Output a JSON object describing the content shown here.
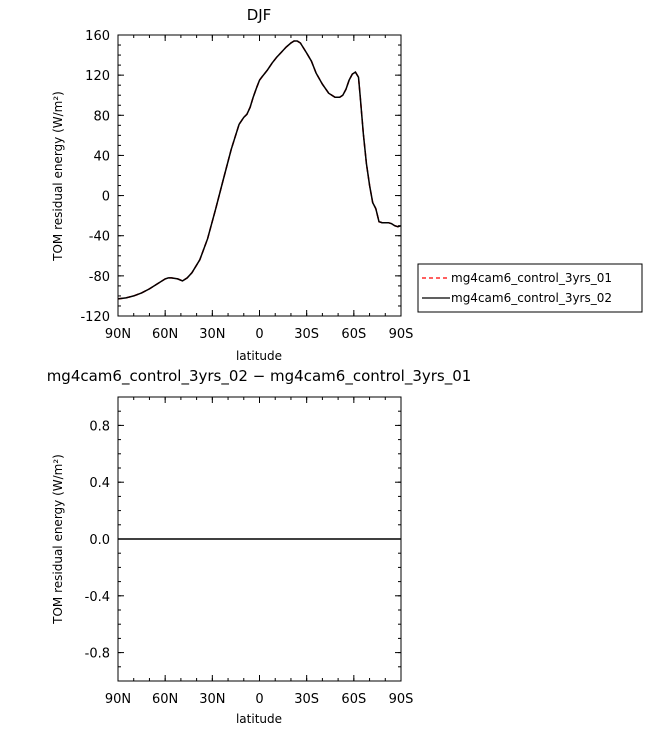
{
  "chart_data": [
    {
      "type": "line",
      "title": "DJF",
      "xlabel": "latitude",
      "ylabel": "TOM residual energy (W/m²)",
      "xlim": [
        90,
        -90
      ],
      "ylim": [
        -120,
        160
      ],
      "xticks": [
        {
          "value": 90,
          "label": "90N"
        },
        {
          "value": 60,
          "label": "60N"
        },
        {
          "value": 30,
          "label": "30N"
        },
        {
          "value": 0,
          "label": "0"
        },
        {
          "value": -30,
          "label": "30S"
        },
        {
          "value": -60,
          "label": "60S"
        },
        {
          "value": -90,
          "label": "90S"
        }
      ],
      "yticks": [
        {
          "value": 160,
          "label": "160"
        },
        {
          "value": 120,
          "label": "120"
        },
        {
          "value": 80,
          "label": "80"
        },
        {
          "value": 40,
          "label": "40"
        },
        {
          "value": 0,
          "label": "0"
        },
        {
          "value": -40,
          "label": "-40"
        },
        {
          "value": -80,
          "label": "-80"
        },
        {
          "value": -120,
          "label": "-120"
        }
      ],
      "legend_position": "right",
      "series": [
        {
          "name": "mg4cam6_control_3yrs_01",
          "color": "#ff0000",
          "style": "dashed",
          "x": [
            90,
            85,
            80,
            75,
            70,
            65,
            60,
            58,
            56,
            52,
            49,
            46,
            43,
            38,
            33,
            28,
            23,
            18,
            13,
            10,
            8,
            6,
            4,
            2,
            0,
            -2,
            -5,
            -8,
            -11,
            -14,
            -17,
            -20,
            -22,
            -24,
            -26,
            -28,
            -30,
            -33,
            -36,
            -40,
            -44,
            -48,
            -51,
            -53,
            -55,
            -57,
            -59,
            -61,
            -63,
            -64,
            -66,
            -68,
            -70,
            -72,
            -74,
            -76,
            -78,
            -80,
            -82,
            -84,
            -86,
            -88,
            -90
          ],
          "y": [
            -103,
            -102,
            -100,
            -97,
            -93,
            -88,
            -83,
            -82,
            -82,
            -83,
            -85,
            -82,
            -77,
            -64,
            -43,
            -14,
            16,
            46,
            71,
            78,
            81,
            88,
            98,
            107,
            115,
            119,
            125,
            132,
            138,
            143,
            148,
            152,
            154,
            154,
            152,
            147,
            142,
            134,
            122,
            111,
            102,
            98,
            98,
            100,
            106,
            115,
            121,
            123,
            118,
            100,
            62,
            32,
            10,
            -7,
            -13,
            -26,
            -27,
            -27,
            -27,
            -28,
            -30,
            -31,
            -30
          ]
        },
        {
          "name": "mg4cam6_control_3yrs_02",
          "color": "#000000",
          "style": "solid",
          "x": [
            90,
            85,
            80,
            75,
            70,
            65,
            60,
            58,
            56,
            52,
            49,
            46,
            43,
            38,
            33,
            28,
            23,
            18,
            13,
            10,
            8,
            6,
            4,
            2,
            0,
            -2,
            -5,
            -8,
            -11,
            -14,
            -17,
            -20,
            -22,
            -24,
            -26,
            -28,
            -30,
            -33,
            -36,
            -40,
            -44,
            -48,
            -51,
            -53,
            -55,
            -57,
            -59,
            -61,
            -63,
            -64,
            -66,
            -68,
            -70,
            -72,
            -74,
            -76,
            -78,
            -80,
            -82,
            -84,
            -86,
            -88,
            -90
          ],
          "y": [
            -103,
            -102,
            -100,
            -97,
            -93,
            -88,
            -83,
            -82,
            -82,
            -83,
            -85,
            -82,
            -77,
            -64,
            -43,
            -14,
            16,
            46,
            71,
            78,
            81,
            88,
            98,
            107,
            115,
            119,
            125,
            132,
            138,
            143,
            148,
            152,
            154,
            154,
            152,
            147,
            142,
            134,
            122,
            111,
            102,
            98,
            98,
            100,
            106,
            115,
            121,
            123,
            118,
            100,
            62,
            32,
            10,
            -7,
            -13,
            -26,
            -27,
            -27,
            -27,
            -28,
            -30,
            -31,
            -30
          ]
        }
      ]
    },
    {
      "type": "line",
      "title": "mg4cam6_control_3yrs_02 − mg4cam6_control_3yrs_01",
      "xlabel": "latitude",
      "ylabel": "TOM residual energy (W/m²)",
      "xlim": [
        90,
        -90
      ],
      "ylim": [
        -1,
        1
      ],
      "xticks": [
        {
          "value": 90,
          "label": "90N"
        },
        {
          "value": 60,
          "label": "60N"
        },
        {
          "value": 30,
          "label": "30N"
        },
        {
          "value": 0,
          "label": "0"
        },
        {
          "value": -30,
          "label": "30S"
        },
        {
          "value": -60,
          "label": "60S"
        },
        {
          "value": -90,
          "label": "90S"
        }
      ],
      "yticks": [
        {
          "value": 0.8,
          "label": "0.8"
        },
        {
          "value": 0.4,
          "label": "0.4"
        },
        {
          "value": 0.0,
          "label": "0.0"
        },
        {
          "value": -0.4,
          "label": "-0.4"
        },
        {
          "value": -0.8,
          "label": "-0.8"
        }
      ],
      "series": [
        {
          "color": "#000000",
          "style": "solid",
          "x": [
            90,
            -90
          ],
          "y": [
            0,
            0
          ]
        }
      ]
    }
  ]
}
